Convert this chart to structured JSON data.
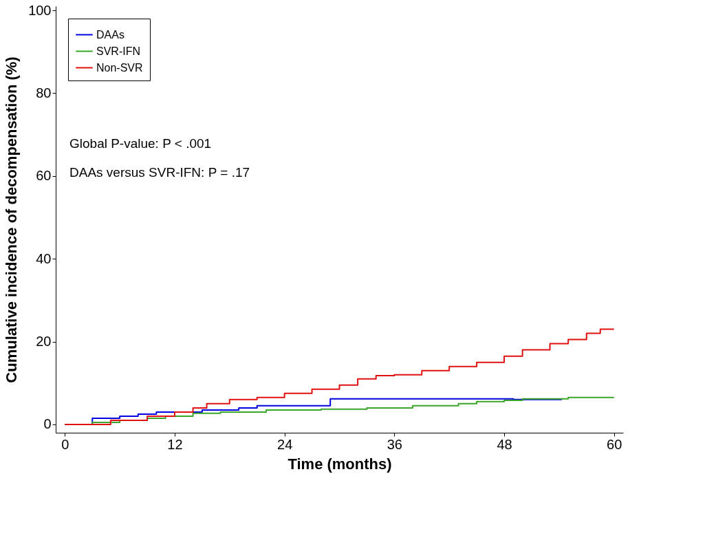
{
  "chart_data": {
    "type": "step",
    "xlabel": "Time (months)",
    "ylabel": "Cumulative incidence of decompensation (%)",
    "xlim": [
      -1,
      61
    ],
    "ylim": [
      -2,
      101
    ],
    "xticks": [
      0,
      12,
      24,
      36,
      48,
      60
    ],
    "yticks": [
      0,
      20,
      40,
      60,
      80,
      100
    ],
    "grid": false,
    "legend": "top left",
    "marker": "none",
    "line_style": "solid",
    "annotations": [
      "Global P-value: P < .001",
      "DAAs versus SVR-IFN: P = .17"
    ],
    "series": [
      {
        "name": "DAAs",
        "color": "#0000e0",
        "x": [
          0,
          3,
          6,
          8,
          10,
          15,
          19,
          21,
          29,
          49,
          54.3
        ],
        "values": [
          0,
          1.5,
          2,
          2.5,
          3,
          3.5,
          4,
          4.5,
          6.2,
          6,
          6
        ]
      },
      {
        "name": "SVR-IFN",
        "color": "#3aa52a",
        "x": [
          0,
          3,
          6,
          9,
          11,
          14,
          17,
          22,
          28,
          33,
          38,
          43,
          45,
          48,
          50,
          55,
          60
        ],
        "values": [
          0,
          0.5,
          1,
          1.5,
          2,
          2.7,
          3,
          3.5,
          3.7,
          4,
          4.5,
          5,
          5.5,
          5.8,
          6.2,
          6.5,
          6.5
        ]
      },
      {
        "name": "Non-SVR",
        "color": "#e01010",
        "x": [
          0,
          5,
          9,
          12,
          14,
          15.5,
          18,
          21,
          24,
          27,
          30,
          32,
          34,
          36,
          39,
          42,
          45,
          48,
          50,
          53,
          55,
          57,
          58.5,
          60
        ],
        "values": [
          0,
          1,
          2,
          3,
          4,
          5,
          6,
          6.5,
          7.5,
          8.5,
          9.5,
          11,
          11.8,
          12,
          13,
          14,
          15,
          16.5,
          18,
          19.5,
          20.5,
          22,
          23,
          23
        ]
      }
    ]
  }
}
